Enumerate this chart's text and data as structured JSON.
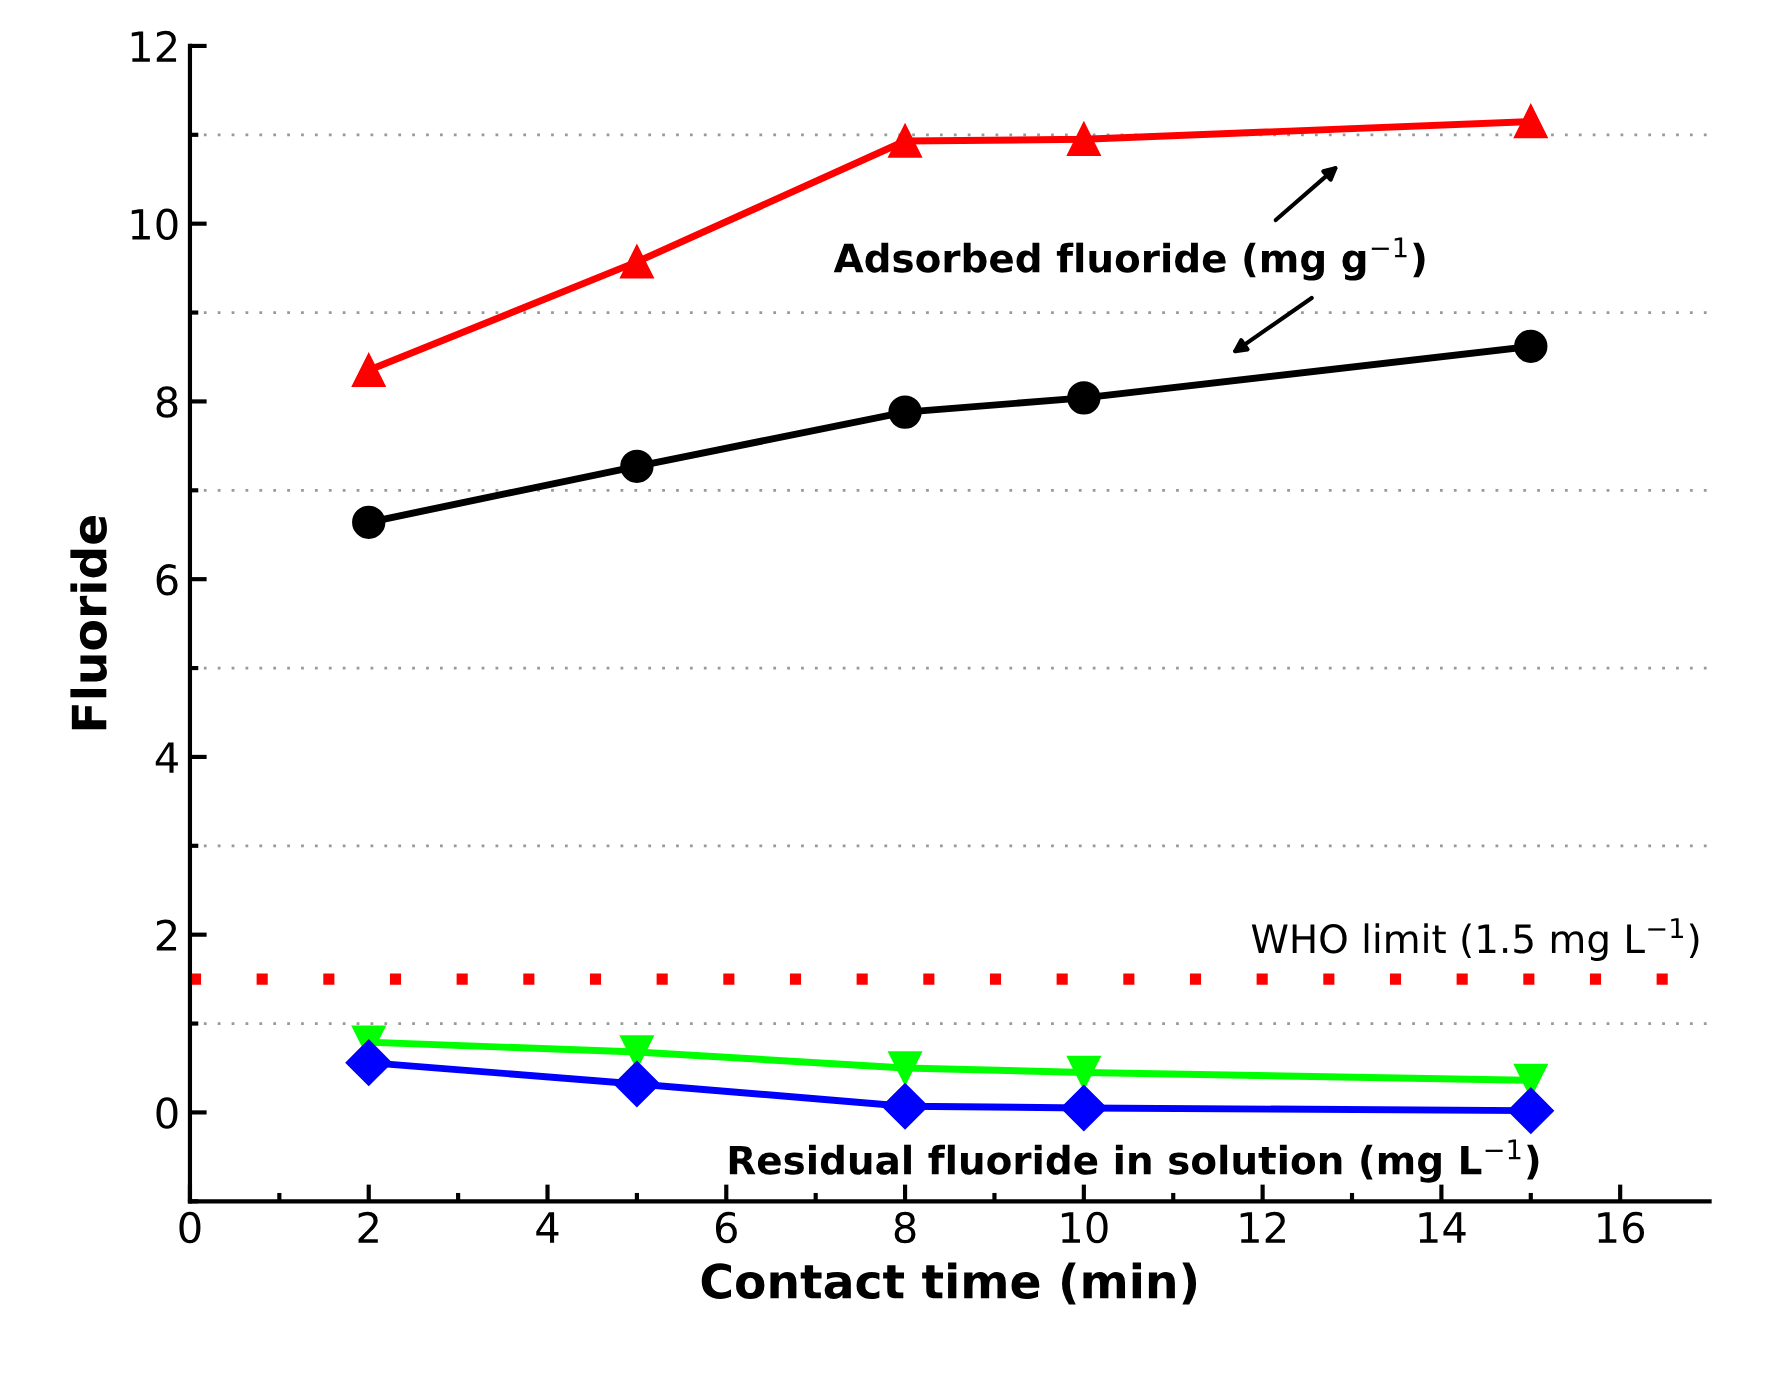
{
  "chart_data": {
    "type": "line",
    "xlabel": "Contact time (min)",
    "ylabel": "Fluoride",
    "x": [
      2,
      5,
      8,
      10,
      15
    ],
    "series": [
      {
        "color": "#ff0000",
        "marker": "triangle",
        "values": [
          8.35,
          9.57,
          10.93,
          10.95,
          11.15
        ]
      },
      {
        "color": "#000000",
        "marker": "circle",
        "values": [
          6.64,
          7.27,
          7.88,
          8.04,
          8.62
        ]
      },
      {
        "color": "#00ff00",
        "marker": "triangle_down",
        "values": [
          0.79,
          0.68,
          0.5,
          0.45,
          0.36
        ]
      },
      {
        "color": "#0000ff",
        "marker": "diamond",
        "values": [
          0.56,
          0.32,
          0.07,
          0.05,
          0.02
        ]
      }
    ],
    "xlim": [
      0,
      17
    ],
    "ylim": [
      -1,
      12
    ],
    "xticks": [
      0,
      {
        "value": 1,
        "label": null
      },
      2,
      {
        "value": 3,
        "label": null
      },
      4,
      {
        "value": 5,
        "label": null
      },
      6,
      {
        "value": 7,
        "label": null
      },
      8,
      {
        "value": 9,
        "label": null
      },
      10,
      {
        "value": 11,
        "label": null
      },
      12,
      {
        "value": 13,
        "label": null
      },
      14,
      {
        "value": 15,
        "label": null
      },
      16
    ],
    "yticks": [
      {
        "value": -1,
        "label": null
      },
      0,
      {
        "value": 1,
        "label": null
      },
      2,
      {
        "value": 3,
        "label": null
      },
      4,
      {
        "value": 5,
        "label": null
      },
      6,
      {
        "value": 7,
        "label": null
      },
      8,
      {
        "value": 9,
        "label": null
      },
      10,
      {
        "value": 11,
        "label": null
      },
      12
    ],
    "grid": "y",
    "line_style": "solid",
    "ref_lines": [
      {
        "axis": "y",
        "value": 1.5,
        "label": "WHO limit (1.5 mg L$^{−1}$)",
        "color": "#ff0000",
        "line_style": "dotted"
      }
    ],
    "annotations": [
      "Adsorbed fluoride (mg g$^{−1}$)",
      "Residual fluoride in solution (mg L$^{−1}$)"
    ]
  }
}
